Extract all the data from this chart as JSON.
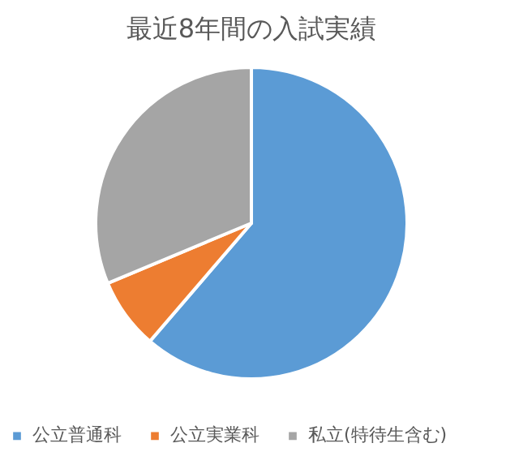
{
  "chart_data": {
    "type": "pie",
    "title": "最近8年間の入試実績",
    "categories": [
      "公立普通科",
      "公立実業科",
      "私立(特待生含む)"
    ],
    "values": [
      61.3,
      7.4,
      31.3
    ],
    "colors": [
      "#5b9bd5",
      "#ed7d31",
      "#a5a5a5"
    ],
    "legend": "bottom"
  }
}
